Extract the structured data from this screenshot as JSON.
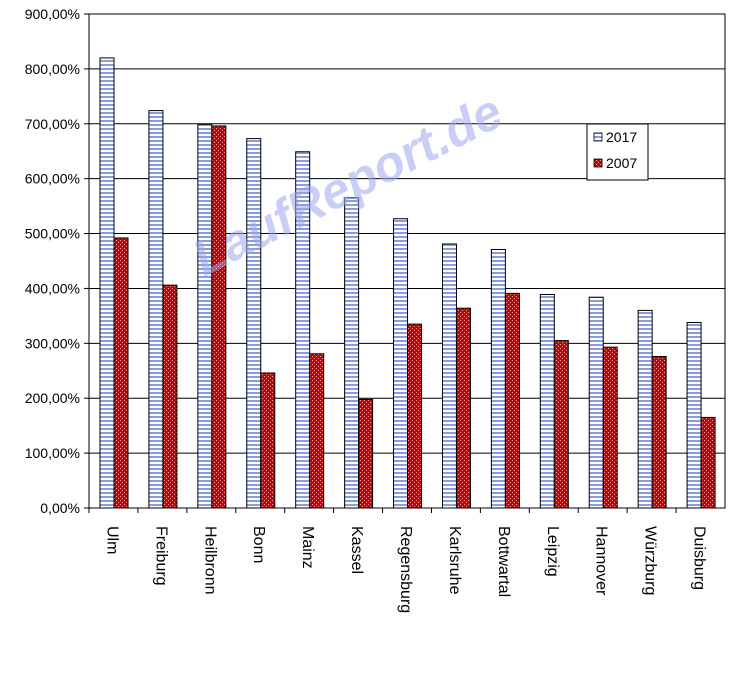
{
  "watermark": "LaufReport.de",
  "chart_data": {
    "type": "bar",
    "categories": [
      "Ulm",
      "Freiburg",
      "Heilbronn",
      "Bonn",
      "Mainz",
      "Kassel",
      "Regensburg",
      "Karlsruhe",
      "Bottwartal",
      "Leipzig",
      "Hannover",
      "Würzburg",
      "Duisburg"
    ],
    "series": [
      {
        "name": "2017",
        "values": [
          820,
          724,
          699,
          673,
          649,
          565,
          527,
          481,
          471,
          389,
          384,
          360,
          338
        ],
        "color": "#ffffff",
        "pattern": "horizontal-stripes",
        "pattern_color": "#8b9be0"
      },
      {
        "name": "2007",
        "values": [
          492,
          406,
          696,
          246,
          281,
          198,
          335,
          364,
          391,
          305,
          293,
          276,
          165
        ],
        "color": "#cc0000",
        "pattern": "dotted",
        "pattern_color": "#ff8888"
      }
    ],
    "yticks": [
      "0,00%",
      "100,00%",
      "200,00%",
      "300,00%",
      "400,00%",
      "500,00%",
      "600,00%",
      "700,00%",
      "800,00%",
      "900,00%"
    ],
    "ylim": [
      0,
      900
    ],
    "grid": true,
    "legend": {
      "placement": "upper-right-inside",
      "entries": [
        "2017",
        "2007"
      ]
    },
    "title": "",
    "xlabel": "",
    "ylabel": ""
  }
}
